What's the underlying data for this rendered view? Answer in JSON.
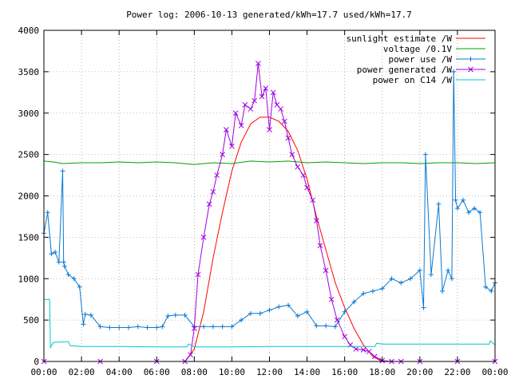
{
  "chart_data": {
    "type": "line",
    "title": "Power log: 2006-10-13 generated/kWh=17.7 used/kWh=17.7",
    "xlabel": "",
    "ylabel": "",
    "x_ticks": [
      "00:00",
      "02:00",
      "04:00",
      "06:00",
      "08:00",
      "10:00",
      "12:00",
      "14:00",
      "16:00",
      "18:00",
      "20:00",
      "22:00",
      "00:00"
    ],
    "xlim": [
      0,
      24
    ],
    "ylim": [
      0,
      4000
    ],
    "y_ticks": [
      0,
      500,
      1000,
      1500,
      2000,
      2500,
      3000,
      3500,
      4000
    ],
    "grid": true,
    "legend_position": "top-right",
    "series": [
      {
        "name": "sunlight estimate /W",
        "color": "#ff0000",
        "style": "line",
        "x": [
          7.5,
          8.0,
          8.5,
          9.0,
          9.5,
          10.0,
          10.5,
          11.0,
          11.5,
          12.0,
          12.5,
          13.0,
          13.5,
          14.0,
          14.5,
          15.0,
          15.5,
          16.0,
          16.5,
          17.0,
          17.5,
          18.0
        ],
        "y": [
          0,
          150,
          600,
          1250,
          1800,
          2300,
          2650,
          2870,
          2950,
          2950,
          2900,
          2780,
          2550,
          2200,
          1750,
          1350,
          950,
          650,
          400,
          200,
          60,
          0
        ]
      },
      {
        "name": "voltage /0.1V",
        "color": "#00a000",
        "style": "line",
        "x": [
          0,
          0.5,
          1.0,
          2.0,
          3.0,
          4.0,
          5.0,
          6.0,
          7.0,
          8.0,
          9.0,
          10.0,
          11.0,
          12.0,
          13.0,
          14.0,
          15.0,
          16.0,
          17.0,
          18.0,
          19.0,
          20.0,
          21.0,
          22.0,
          23.0,
          24.0
        ],
        "y": [
          2420,
          2410,
          2390,
          2400,
          2400,
          2410,
          2400,
          2410,
          2400,
          2380,
          2400,
          2390,
          2420,
          2410,
          2420,
          2400,
          2410,
          2400,
          2390,
          2400,
          2400,
          2390,
          2400,
          2400,
          2390,
          2400
        ]
      },
      {
        "name": "power use /W",
        "color": "#0a78d2",
        "style": "line-points",
        "x": [
          0.0,
          0.2,
          0.4,
          0.6,
          0.8,
          1.0,
          1.05,
          1.1,
          1.3,
          1.6,
          1.9,
          2.1,
          2.2,
          2.5,
          3.0,
          3.5,
          4.0,
          4.5,
          5.0,
          5.5,
          6.0,
          6.3,
          6.6,
          7.0,
          7.5,
          8.0,
          8.5,
          9.0,
          9.5,
          10.0,
          10.5,
          11.0,
          11.5,
          12.0,
          12.5,
          13.0,
          13.5,
          14.0,
          14.5,
          15.0,
          15.5,
          16.0,
          16.5,
          17.0,
          17.5,
          18.0,
          18.5,
          19.0,
          19.5,
          20.0,
          20.2,
          20.3,
          20.6,
          21.0,
          21.2,
          21.5,
          21.7,
          21.8,
          21.9,
          22.0,
          22.3,
          22.6,
          22.9,
          23.2,
          23.5,
          23.8,
          24.0
        ],
        "y": [
          1550,
          1800,
          1300,
          1320,
          1200,
          2300,
          1200,
          1150,
          1050,
          1000,
          900,
          450,
          570,
          560,
          420,
          410,
          410,
          410,
          420,
          410,
          410,
          420,
          550,
          560,
          560,
          420,
          420,
          420,
          420,
          420,
          500,
          580,
          580,
          620,
          660,
          680,
          550,
          600,
          430,
          430,
          420,
          600,
          720,
          820,
          850,
          880,
          1000,
          950,
          1000,
          1100,
          650,
          2500,
          1050,
          1900,
          850,
          1100,
          1000,
          3500,
          1950,
          1850,
          1950,
          1800,
          1850,
          1800,
          900,
          850,
          950
        ]
      },
      {
        "name": "power generated /W",
        "color": "#a000e0",
        "style": "line-points",
        "x": [
          0.0,
          3.0,
          6.0,
          7.5,
          7.8,
          8.0,
          8.2,
          8.5,
          8.8,
          9.0,
          9.2,
          9.5,
          9.7,
          10.0,
          10.2,
          10.5,
          10.7,
          11.0,
          11.2,
          11.4,
          11.6,
          11.8,
          12.0,
          12.2,
          12.4,
          12.6,
          12.8,
          13.0,
          13.2,
          13.5,
          13.8,
          14.0,
          14.3,
          14.5,
          14.7,
          15.0,
          15.3,
          15.6,
          16.0,
          16.3,
          16.6,
          17.0,
          17.3,
          17.6,
          18.0,
          18.5,
          19.0,
          20.0,
          22.0,
          24.0
        ],
        "y": [
          0,
          0,
          0,
          0,
          80,
          400,
          1050,
          1500,
          1900,
          2050,
          2250,
          2500,
          2800,
          2600,
          3000,
          2850,
          3100,
          3050,
          3150,
          3600,
          3200,
          3300,
          2800,
          3250,
          3100,
          3050,
          2900,
          2700,
          2500,
          2350,
          2250,
          2100,
          1950,
          1700,
          1400,
          1100,
          750,
          500,
          300,
          200,
          150,
          140,
          120,
          60,
          10,
          0,
          0,
          0,
          0,
          0
        ]
      },
      {
        "name": "power on C14 /W",
        "color": "#00c8c8",
        "style": "line",
        "x": [
          0,
          0.3,
          0.35,
          0.5,
          1.3,
          1.4,
          2.0,
          4.0,
          6.0,
          7.6,
          7.7,
          8.0,
          10.0,
          12.0,
          14.0,
          16.0,
          17.6,
          17.7,
          18.0,
          20.0,
          22.0,
          23.7,
          23.75,
          24.0
        ],
        "y": [
          750,
          750,
          170,
          230,
          240,
          190,
          180,
          180,
          175,
          175,
          210,
          175,
          175,
          180,
          180,
          180,
          180,
          220,
          210,
          210,
          210,
          210,
          250,
          200
        ]
      }
    ]
  }
}
